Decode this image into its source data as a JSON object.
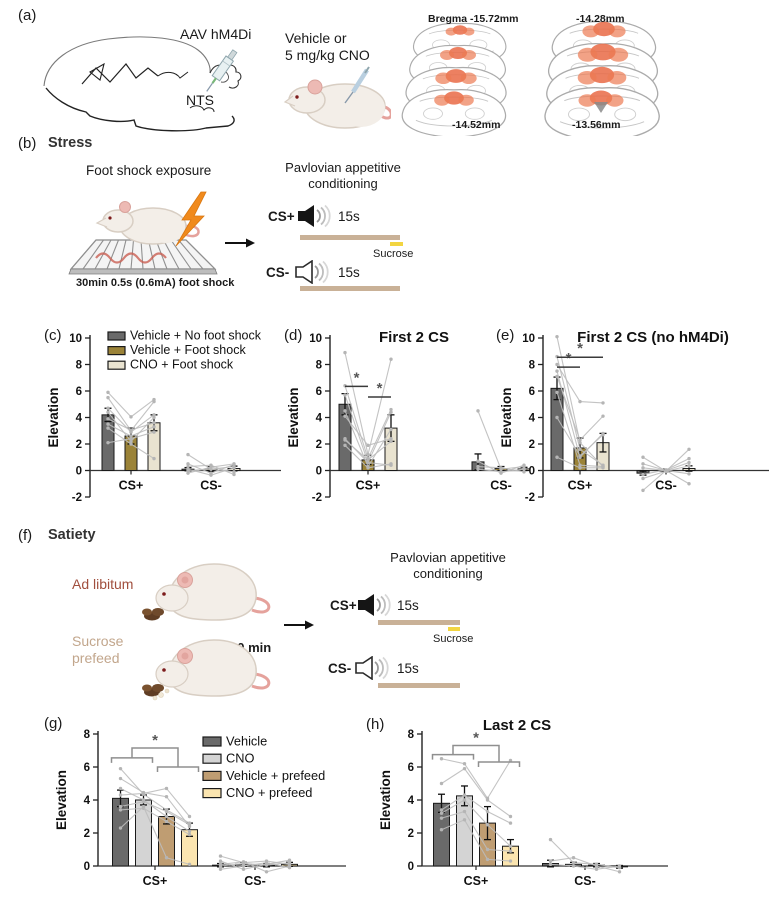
{
  "panels": {
    "a": {
      "label": "(a)",
      "virus": "AAV hM4Di",
      "region": "NTS",
      "dose_line1": "Vehicle or",
      "dose_line2": "5 mg/kg CNO",
      "bregma_left_top": "Bregma -15.72mm",
      "bregma_left_bottom": "-14.52mm",
      "bregma_right_top": "-14.28mm",
      "bregma_right_bottom": "-13.56mm"
    },
    "b": {
      "label": "(b)",
      "title": "Stress",
      "exposure_title": "Foot shock exposure",
      "exposure_caption": "30min 0.5s (0.6mA) foot shock",
      "conditioning": {
        "title_line1": "Pavlovian appetitive",
        "title_line2": "conditioning",
        "cs_plus": "CS+",
        "cs_minus": "CS-",
        "duration": "15s",
        "sucrose": "Sucrose"
      }
    },
    "f": {
      "label": "(f)",
      "title": "Satiety",
      "adlib_label": "Ad libitum",
      "prefeed_line1": "Sucrose",
      "prefeed_line2": "prefeed",
      "prefeed_time": "10 min",
      "conditioning": {
        "title_line1": "Pavlovian appetitive",
        "title_line2": "conditioning",
        "cs_plus": "CS+",
        "cs_minus": "CS-",
        "duration": "15s",
        "sucrose": "Sucrose"
      }
    }
  },
  "colors": {
    "tan_bar": "#c9b197",
    "sucrose_yellow": "#f2d541",
    "red_blob": "#e96a45",
    "adlib_text": "#a14f3e",
    "prefeed_text": "#c2a68c",
    "lightning": "#f08a1d",
    "subject_line": "#bdbdbd"
  },
  "chart_data": [
    {
      "panel": "(c)",
      "type": "bar",
      "title": "",
      "ylabel": "Elevation",
      "ylim": [
        -2,
        10
      ],
      "yticks": [
        -2,
        0,
        2,
        4,
        6,
        8,
        10
      ],
      "groups": [
        "CS+",
        "CS-"
      ],
      "legend_position": "inside-top",
      "series": [
        {
          "name": "Vehicle + No foot shock",
          "color": "#6a6a6a"
        },
        {
          "name": "Vehicle + Foot shock",
          "color": "#9b8338"
        },
        {
          "name": "CNO + Foot shock",
          "color": "#e9e3d0"
        }
      ],
      "values": [
        [
          4.2,
          2.6,
          3.6
        ],
        [
          0.1,
          0.1,
          0.15
        ]
      ],
      "errors": [
        [
          0.5,
          0.6,
          0.6
        ],
        [
          0.12,
          0.18,
          0.18
        ]
      ],
      "subject_lines": [
        [
          [
            5.9,
            4.05,
            5.35
          ],
          [
            5.5,
            3.0,
            5.2
          ],
          [
            4.7,
            2.9,
            4.2
          ],
          [
            4.4,
            2.2,
            4.0
          ],
          [
            3.9,
            3.05,
            3.6
          ],
          [
            3.5,
            2.6,
            3.3
          ],
          [
            3.2,
            2.0,
            0.9
          ],
          [
            2.1,
            2.4,
            2.9
          ]
        ],
        [
          [
            1.2,
            0.1,
            0.3
          ],
          [
            0.5,
            -0.2,
            0.45
          ],
          [
            0.3,
            0.4,
            -0.3
          ],
          [
            0.1,
            -0.35,
            0.2
          ],
          [
            -0.2,
            0.25,
            0.5
          ],
          [
            0.0,
            0.1,
            -0.1
          ]
        ]
      ],
      "sig": []
    },
    {
      "panel": "(d)",
      "type": "bar",
      "title": "First 2 CS",
      "ylabel": "Elevation",
      "ylim": [
        -2,
        10
      ],
      "yticks": [
        -2,
        0,
        2,
        4,
        6,
        8,
        10
      ],
      "groups": [
        "CS+",
        "CS-"
      ],
      "series": [
        {
          "name": "Vehicle + No foot shock",
          "color": "#6a6a6a"
        },
        {
          "name": "Vehicle + Foot shock",
          "color": "#9b8338"
        },
        {
          "name": "CNO + Foot shock",
          "color": "#e9e3d0"
        }
      ],
      "values": [
        [
          5.0,
          0.8,
          3.2
        ],
        [
          0.65,
          0.15,
          0.12
        ]
      ],
      "errors": [
        [
          0.8,
          0.35,
          1.0
        ],
        [
          0.6,
          0.15,
          0.12
        ]
      ],
      "subject_lines": [
        [
          [
            8.9,
            1.2,
            8.4
          ],
          [
            6.4,
            0.9,
            4.6
          ],
          [
            5.7,
            0.6,
            4.4
          ],
          [
            4.5,
            0.3,
            3.1
          ],
          [
            4.1,
            1.9,
            2.4
          ],
          [
            2.4,
            0.6,
            0.4
          ],
          [
            1.9,
            0.2,
            0.5
          ],
          [
            2.3,
            0.8,
            2.2
          ]
        ],
        [
          [
            4.5,
            0.1,
            0.3
          ],
          [
            0.7,
            -0.2,
            0.4
          ],
          [
            0.3,
            0.2,
            -0.1
          ],
          [
            0.1,
            -0.1,
            0.1
          ]
        ]
      ],
      "sig": [
        {
          "style": "line",
          "group": 0,
          "from": 0,
          "to": 1,
          "y": 6.35,
          "label": "*"
        },
        {
          "style": "line",
          "group": 0,
          "from": 1,
          "to": 2,
          "y": 5.55,
          "label": "*"
        }
      ]
    },
    {
      "panel": "(e)",
      "type": "bar",
      "title": "First 2 CS (no hM4Di)",
      "ylabel": "Elevation",
      "ylim": [
        -2,
        10
      ],
      "yticks": [
        -2,
        0,
        2,
        4,
        6,
        8,
        10
      ],
      "groups": [
        "CS+",
        "CS-"
      ],
      "series": [
        {
          "name": "Vehicle + No foot shock",
          "color": "#6a6a6a"
        },
        {
          "name": "Vehicle + Foot shock",
          "color": "#9b8338"
        },
        {
          "name": "CNO + Foot shock",
          "color": "#e9e3d0"
        }
      ],
      "values": [
        [
          6.2,
          1.7,
          2.1
        ],
        [
          -0.2,
          0.0,
          0.15
        ]
      ],
      "errors": [
        [
          0.85,
          0.75,
          0.7
        ],
        [
          0.15,
          0.1,
          0.2
        ]
      ],
      "subject_lines": [
        [
          [
            10.1,
            2.1,
            0.3
          ],
          [
            8.6,
            1.6,
            0.4
          ],
          [
            8.0,
            5.2,
            5.1
          ],
          [
            7.5,
            1.0,
            2.8
          ],
          [
            7.1,
            2.3,
            4.1
          ],
          [
            5.9,
            0.4,
            0.3
          ],
          [
            4.0,
            1.1,
            2.7
          ],
          [
            1.0,
            0.2,
            0.2
          ]
        ],
        [
          [
            1.0,
            -0.05,
            1.6
          ],
          [
            0.5,
            0.0,
            -1.0
          ],
          [
            -0.3,
            0.05,
            0.9
          ],
          [
            -0.6,
            -0.05,
            0.35
          ],
          [
            -1.5,
            0.0,
            -0.25
          ],
          [
            0.2,
            0.0,
            0.6
          ]
        ]
      ],
      "sig": [
        {
          "style": "line",
          "group": 0,
          "from": 0,
          "to": 1,
          "y": 7.8,
          "label": "*"
        },
        {
          "style": "line",
          "group": 0,
          "from": 0,
          "to": 2,
          "y": 8.55,
          "label": "*"
        }
      ]
    },
    {
      "panel": "(g)",
      "type": "bar",
      "title": "",
      "ylabel": "Elevation",
      "ylim": [
        0,
        8
      ],
      "yticks": [
        0,
        2,
        4,
        6,
        8
      ],
      "groups": [
        "CS+",
        "CS-"
      ],
      "legend_position": "inside-right",
      "series": [
        {
          "name": "Vehicle",
          "color": "#6a6a6a"
        },
        {
          "name": "CNO",
          "color": "#d4d4d4"
        },
        {
          "name": "Vehicle + prefeed",
          "color": "#bf9d72"
        },
        {
          "name": "CNO + prefeed",
          "color": "#fbe5b0"
        }
      ],
      "values": [
        [
          4.1,
          4.0,
          3.0,
          2.2
        ],
        [
          0.05,
          0.1,
          0.05,
          0.1
        ]
      ],
      "errors": [
        [
          0.5,
          0.3,
          0.45,
          0.4
        ],
        [
          0.1,
          0.12,
          0.1,
          0.12
        ]
      ],
      "subject_lines": [
        [
          [
            5.9,
            4.35,
            3.4,
            2.6
          ],
          [
            5.3,
            4.45,
            4.2,
            2.4
          ],
          [
            4.7,
            4.0,
            3.0,
            2.1
          ],
          [
            4.3,
            4.4,
            4.7,
            3.0
          ],
          [
            3.6,
            3.9,
            3.3,
            2.5
          ],
          [
            3.4,
            3.5,
            2.7,
            1.9
          ],
          [
            2.3,
            3.6,
            0.5,
            0.1
          ]
        ],
        [
          [
            0.6,
            0.2,
            0.3,
            0.1
          ],
          [
            0.3,
            -0.2,
            0.1,
            0.35
          ],
          [
            0.1,
            0.25,
            -0.35,
            0.0
          ],
          [
            -0.2,
            0.0,
            0.2,
            -0.1
          ],
          [
            0.0,
            0.15,
            0.05,
            0.2
          ]
        ]
      ],
      "sig": [
        {
          "style": "bracket",
          "group": 0,
          "left": [
            0,
            1
          ],
          "right": [
            2,
            3
          ],
          "y_left": 6.55,
          "y_right": 6.0,
          "y_top": 7.15,
          "label": "*"
        }
      ]
    },
    {
      "panel": "(h)",
      "type": "bar",
      "title": "Last 2 CS",
      "ylabel": "Elevation",
      "ylim": [
        0,
        8
      ],
      "yticks": [
        0,
        2,
        4,
        6,
        8
      ],
      "groups": [
        "CS+",
        "CS-"
      ],
      "series": [
        {
          "name": "Vehicle",
          "color": "#6a6a6a"
        },
        {
          "name": "CNO",
          "color": "#d4d4d4"
        },
        {
          "name": "Vehicle + prefeed",
          "color": "#bf9d72"
        },
        {
          "name": "CNO + prefeed",
          "color": "#fbe5b0"
        }
      ],
      "values": [
        [
          3.8,
          4.25,
          2.6,
          1.2
        ],
        [
          0.15,
          0.1,
          0.05,
          -0.05
        ]
      ],
      "errors": [
        [
          0.55,
          0.6,
          1.0,
          0.4
        ],
        [
          0.2,
          0.12,
          0.1,
          0.08
        ]
      ],
      "subject_lines": [
        [
          [
            6.5,
            6.2,
            4.1,
            6.4
          ],
          [
            5.0,
            5.9,
            4.0,
            3.0
          ],
          [
            3.4,
            4.3,
            3.3,
            2.6
          ],
          [
            3.2,
            4.0,
            2.5,
            1.2
          ],
          [
            2.9,
            3.3,
            1.0,
            0.9
          ],
          [
            2.2,
            2.8,
            0.4,
            0.3
          ]
        ],
        [
          [
            1.6,
            0.2,
            0.1,
            -0.1
          ],
          [
            0.3,
            0.5,
            0.0,
            -0.35
          ],
          [
            0.1,
            0.0,
            -0.2,
            0.0
          ]
        ]
      ],
      "sig": [
        {
          "style": "bracket",
          "group": 0,
          "left": [
            0,
            1
          ],
          "right": [
            2,
            3
          ],
          "y_left": 6.75,
          "y_right": 6.3,
          "y_top": 7.3,
          "label": "*"
        }
      ]
    }
  ]
}
